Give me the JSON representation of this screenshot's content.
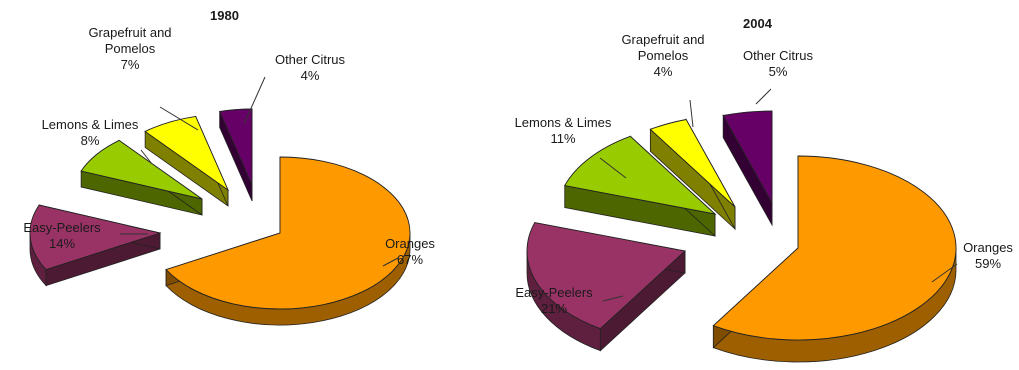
{
  "chart_data": [
    {
      "type": "pie",
      "title": "1980",
      "slices": [
        {
          "name": "Oranges",
          "value": 67,
          "label": "67%",
          "color": "#FF9900"
        },
        {
          "name": "Easy-Peelers",
          "value": 14,
          "label": "14%",
          "color": "#993366"
        },
        {
          "name": "Lemons & Limes",
          "value": 8,
          "label": "8%",
          "color": "#99CC00"
        },
        {
          "name": "Grapefruit and Pomelos",
          "value": 7,
          "label": "7%",
          "color": "#FFFF00"
        },
        {
          "name": "Other Citrus",
          "value": 4,
          "label": "4%",
          "color": "#660066"
        }
      ]
    },
    {
      "type": "pie",
      "title": "2004",
      "slices": [
        {
          "name": "Oranges",
          "value": 59,
          "label": "59%",
          "color": "#FF9900"
        },
        {
          "name": "Easy-Peelers",
          "value": 21,
          "label": "21%",
          "color": "#993366"
        },
        {
          "name": "Lemons & Limes",
          "value": 11,
          "label": "11%",
          "color": "#99CC00"
        },
        {
          "name": "Grapefruit and Pomelos",
          "value": 4,
          "label": "4%",
          "color": "#FFFF00"
        },
        {
          "name": "Other Citrus",
          "value": 5,
          "label": "5%",
          "color": "#660066"
        }
      ]
    }
  ]
}
